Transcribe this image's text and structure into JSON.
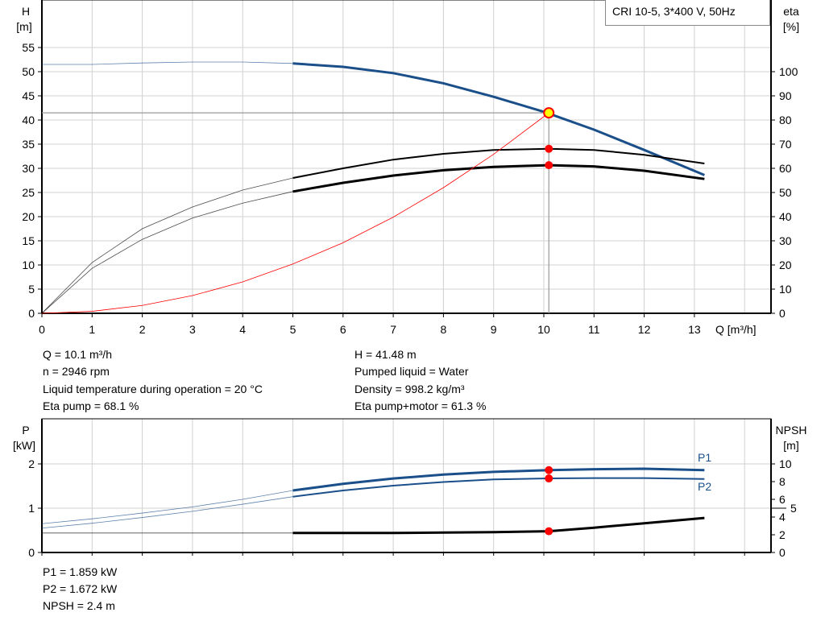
{
  "legend_label": "CRI 10-5, 3*400 V, 50Hz",
  "colors": {
    "head": "#1a4f8a",
    "efficiency": "#000000",
    "system": "#ff0000",
    "grid": "#d0d0d0",
    "marker": "#ff0000",
    "op_marker_fill": "#ffff00"
  },
  "chart_data": [
    {
      "type": "line",
      "x_unit_label": "Q [m³/h]",
      "xlim": [
        0,
        14.5
      ],
      "xticks": [
        0,
        1,
        2,
        3,
        4,
        5,
        6,
        7,
        8,
        9,
        10,
        11,
        12,
        13
      ],
      "left_axis": {
        "label": "H",
        "unit": "[m]",
        "ylim": [
          0,
          60
        ],
        "ticks": [
          0,
          5,
          10,
          15,
          20,
          25,
          30,
          35,
          40,
          45,
          50,
          55
        ]
      },
      "right_axis": {
        "label": "eta",
        "unit": "[%]",
        "ylim": [
          0,
          120
        ],
        "ticks": [
          0,
          10,
          20,
          30,
          40,
          50,
          60,
          70,
          80,
          90,
          100
        ]
      },
      "grid": true,
      "series": [
        {
          "key": "H",
          "axis": "left",
          "color": "#1a4f8a",
          "x": [
            0,
            1,
            2,
            3,
            4,
            5,
            6,
            7,
            8,
            9,
            10,
            11,
            12,
            13.2
          ],
          "y": [
            51.5,
            51.5,
            51.8,
            52,
            52,
            51.7,
            51,
            49.7,
            47.6,
            44.8,
            41.7,
            38,
            33.8,
            28.6
          ]
        },
        {
          "key": "eta_pump",
          "axis": "right",
          "color": "#000000",
          "x": [
            0,
            1,
            2,
            3,
            4,
            5,
            6,
            7,
            8,
            9,
            10.1,
            11,
            12,
            13.2
          ],
          "y": [
            0,
            21,
            35,
            44,
            51,
            56,
            60,
            63.6,
            66,
            67.6,
            68.1,
            67.6,
            65.6,
            62
          ]
        },
        {
          "key": "eta_pump_motor",
          "axis": "right",
          "color": "#000000",
          "x": [
            0,
            1,
            2,
            3,
            4,
            5,
            6,
            7,
            8,
            9,
            10.1,
            11,
            12,
            13.2
          ],
          "y": [
            0,
            18.6,
            30.6,
            39.4,
            45.6,
            50.4,
            54,
            57,
            59.2,
            60.6,
            61.3,
            60.8,
            59,
            55.6
          ]
        },
        {
          "key": "system",
          "axis": "left",
          "color": "#ff0000",
          "x": [
            0,
            1,
            2,
            3,
            4,
            5,
            6,
            7,
            8,
            9,
            10.1
          ],
          "y": [
            0,
            0.41,
            1.63,
            3.66,
            6.5,
            10.2,
            14.6,
            19.9,
            26,
            32.9,
            41.48
          ]
        }
      ],
      "operating_point": {
        "Q": 10.1,
        "H": 41.48,
        "eta_pump": 68.1,
        "eta_pump_motor": 61.3
      }
    },
    {
      "type": "line",
      "xlim": [
        0,
        14.5
      ],
      "left_axis": {
        "label": "P",
        "unit": "[kW]",
        "ylim": [
          0,
          3
        ],
        "ticks": [
          0,
          1,
          2
        ]
      },
      "right_axis": {
        "label": "NPSH",
        "unit": "[m]",
        "ylim": [
          0,
          15
        ],
        "ticks": [
          0,
          2,
          4,
          5,
          6,
          8,
          10
        ]
      },
      "grid": true,
      "series": [
        {
          "name": "P1",
          "axis": "left",
          "color": "#1a4f8a",
          "x": [
            0,
            1,
            2,
            3,
            4,
            5,
            6,
            7,
            8,
            9,
            10.1,
            11,
            12,
            13.2
          ],
          "y": [
            0.65,
            0.76,
            0.89,
            1.03,
            1.2,
            1.4,
            1.55,
            1.67,
            1.76,
            1.82,
            1.859,
            1.88,
            1.89,
            1.86
          ]
        },
        {
          "name": "P2",
          "axis": "left",
          "color": "#1a4f8a",
          "x": [
            0,
            1,
            2,
            3,
            4,
            5,
            6,
            7,
            8,
            9,
            10.1,
            11,
            12,
            13.2
          ],
          "y": [
            0.55,
            0.66,
            0.79,
            0.93,
            1.09,
            1.26,
            1.4,
            1.51,
            1.59,
            1.65,
            1.672,
            1.68,
            1.68,
            1.66
          ]
        },
        {
          "key": "NPSH",
          "axis": "right",
          "color": "#000000",
          "x": [
            0,
            1,
            2,
            3,
            4,
            5,
            6,
            7,
            8,
            9,
            10.1,
            11,
            12,
            13.2
          ],
          "y": [
            2.2,
            2.2,
            2.2,
            2.2,
            2.2,
            2.2,
            2.2,
            2.2,
            2.25,
            2.3,
            2.4,
            2.8,
            3.3,
            3.9
          ]
        }
      ]
    }
  ],
  "info_top": {
    "left": [
      "Q = 10.1 m³/h",
      "n = 2946 rpm",
      "Liquid temperature during operation = 20 °C",
      "Eta pump = 68.1 %"
    ],
    "right": [
      "H = 41.48 m",
      "Pumped liquid = Water",
      "Density = 998.2 kg/m³",
      "Eta pump+motor = 61.3 %"
    ]
  },
  "info_bottom": [
    "P1 = 1.859 kW",
    "P2 = 1.672 kW",
    "NPSH = 2.4 m"
  ]
}
